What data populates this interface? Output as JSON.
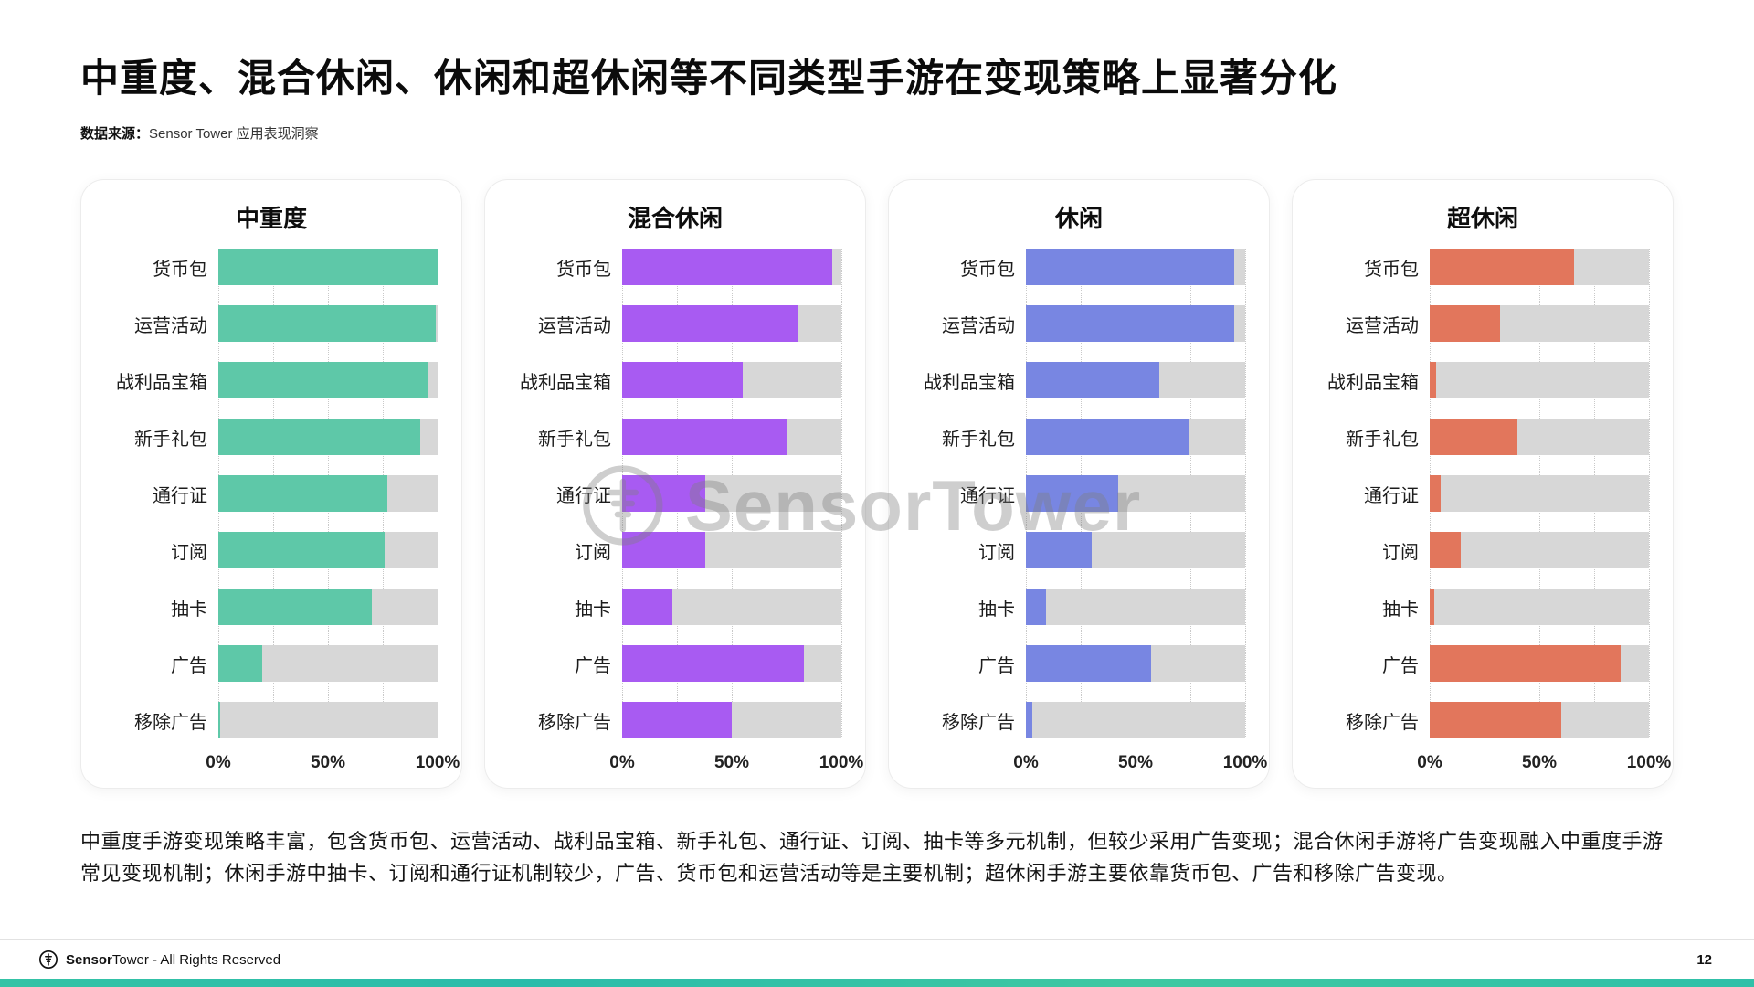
{
  "page": {
    "title": "中重度、混合休闲、休闲和超休闲等不同类型手游在变现策略上显著分化",
    "source": {
      "label": "数据来源：",
      "text": "Sensor Tower 应用表现洞察"
    },
    "summary": "中重度手游变现策略丰富，包含货币包、运营活动、战利品宝箱、新手礼包、通行证、订阅、抽卡等多元机制，但较少采用广告变现；混合休闲手游将广告变现融入中重度手游常见变现机制；休闲手游中抽卡、订阅和通行证机制较少，广告、货币包和运营活动等是主要机制；超休闲手游主要依靠货币包、广告和移除广告变现。",
    "watermark_text": "SensorTower",
    "footer": {
      "brand_bold": "Sensor",
      "brand_light": "Tower",
      "rights_text": " - All Rights Reserved",
      "page_number": "12"
    },
    "colors": {
      "accent_strip": "#2fc0a8",
      "track": "#d7d7d7",
      "gridline": "#c9c9c9"
    }
  },
  "chart_data": [
    {
      "type": "bar",
      "orientation": "horizontal",
      "title": "中重度",
      "color": "#5ec8a8",
      "categories": [
        "货币包",
        "运营活动",
        "战利品宝箱",
        "新手礼包",
        "通行证",
        "订阅",
        "抽卡",
        "广告",
        "移除广告"
      ],
      "values": [
        100,
        99,
        96,
        92,
        77,
        76,
        70,
        20,
        1
      ],
      "xlim": [
        0,
        100
      ],
      "xtick_labels": [
        "0%",
        "50%",
        "100%"
      ],
      "xtick_percents": [
        0,
        50,
        100
      ],
      "grid_percents": [
        0,
        25,
        50,
        75,
        100
      ]
    },
    {
      "type": "bar",
      "orientation": "horizontal",
      "title": "混合休闲",
      "color": "#a85bf2",
      "categories": [
        "货币包",
        "运营活动",
        "战利品宝箱",
        "新手礼包",
        "通行证",
        "订阅",
        "抽卡",
        "广告",
        "移除广告"
      ],
      "values": [
        96,
        80,
        55,
        75,
        38,
        38,
        23,
        83,
        50
      ],
      "xlim": [
        0,
        100
      ],
      "xtick_labels": [
        "0%",
        "50%",
        "100%"
      ],
      "xtick_percents": [
        0,
        50,
        100
      ],
      "grid_percents": [
        0,
        25,
        50,
        75,
        100
      ]
    },
    {
      "type": "bar",
      "orientation": "horizontal",
      "title": "休闲",
      "color": "#7886e2",
      "categories": [
        "货币包",
        "运营活动",
        "战利品宝箱",
        "新手礼包",
        "通行证",
        "订阅",
        "抽卡",
        "广告",
        "移除广告"
      ],
      "values": [
        95,
        95,
        61,
        74,
        42,
        30,
        9,
        57,
        3
      ],
      "xlim": [
        0,
        100
      ],
      "xtick_labels": [
        "0%",
        "50%",
        "100%"
      ],
      "xtick_percents": [
        0,
        50,
        100
      ],
      "grid_percents": [
        0,
        25,
        50,
        75,
        100
      ]
    },
    {
      "type": "bar",
      "orientation": "horizontal",
      "title": "超休闲",
      "color": "#e2765c",
      "categories": [
        "货币包",
        "运营活动",
        "战利品宝箱",
        "新手礼包",
        "通行证",
        "订阅",
        "抽卡",
        "广告",
        "移除广告"
      ],
      "values": [
        66,
        32,
        3,
        40,
        5,
        14,
        2,
        87,
        60
      ],
      "xlim": [
        0,
        100
      ],
      "xtick_labels": [
        "0%",
        "50%",
        "100%"
      ],
      "xtick_percents": [
        0,
        50,
        100
      ],
      "grid_percents": [
        0,
        25,
        50,
        75,
        100
      ]
    }
  ]
}
